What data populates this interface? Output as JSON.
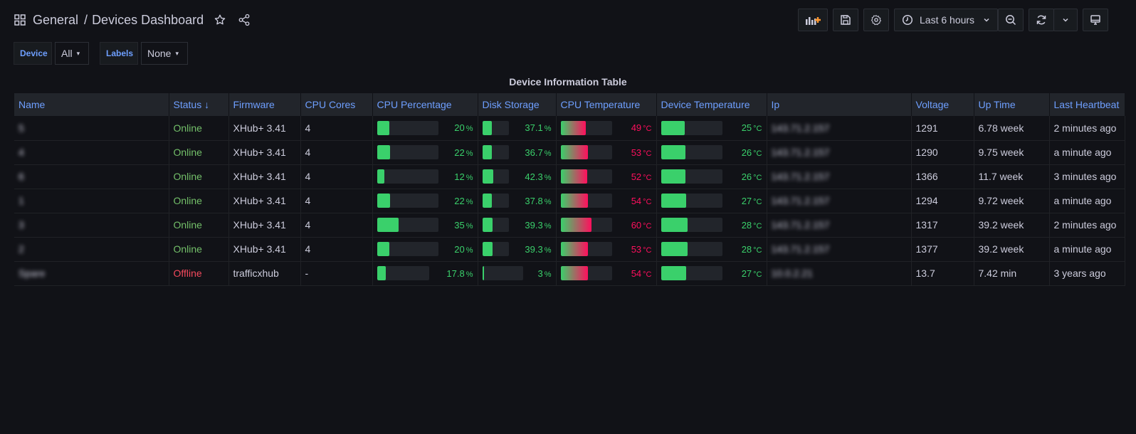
{
  "header": {
    "folder": "General",
    "separator": "/",
    "dashboard": "Devices Dashboard",
    "time_range": "Last 6 hours"
  },
  "variables": [
    {
      "label": "Device",
      "value": "All"
    },
    {
      "label": "Labels",
      "value": "None"
    }
  ],
  "panel": {
    "title": "Device Information Table",
    "columns": [
      "Name",
      "Status ↓",
      "Firmware",
      "CPU Cores",
      "CPU Percentage",
      "Disk Storage",
      "CPU Temperature",
      "Device Temperature",
      "Ip",
      "Voltage",
      "Up Time",
      "Last Heartbeat"
    ],
    "units": {
      "percent": "%",
      "temp": "°C"
    },
    "rows": [
      {
        "name": "5",
        "status": "Online",
        "firmware": "XHub+ 3.41",
        "cores": "4",
        "cpu": 20,
        "disk": 37.1,
        "cpu_temp": 49,
        "dev_temp": 25,
        "ip": "143.71.2.157",
        "voltage": "1291",
        "uptime": "6.78 week",
        "heartbeat": "2 minutes ago"
      },
      {
        "name": "4",
        "status": "Online",
        "firmware": "XHub+ 3.41",
        "cores": "4",
        "cpu": 22,
        "disk": 36.7,
        "cpu_temp": 53,
        "dev_temp": 26,
        "ip": "143.71.2.157",
        "voltage": "1290",
        "uptime": "9.75 week",
        "heartbeat": "a minute ago"
      },
      {
        "name": "6",
        "status": "Online",
        "firmware": "XHub+ 3.41",
        "cores": "4",
        "cpu": 12,
        "disk": 42.3,
        "cpu_temp": 52,
        "dev_temp": 26,
        "ip": "143.71.2.157",
        "voltage": "1366",
        "uptime": "11.7 week",
        "heartbeat": "3 minutes ago"
      },
      {
        "name": "1",
        "status": "Online",
        "firmware": "XHub+ 3.41",
        "cores": "4",
        "cpu": 22,
        "disk": 37.8,
        "cpu_temp": 54,
        "dev_temp": 27,
        "ip": "143.71.2.157",
        "voltage": "1294",
        "uptime": "9.72 week",
        "heartbeat": "a minute ago"
      },
      {
        "name": "3",
        "status": "Online",
        "firmware": "XHub+ 3.41",
        "cores": "4",
        "cpu": 35,
        "disk": 39.3,
        "cpu_temp": 60,
        "dev_temp": 28,
        "ip": "143.71.2.157",
        "voltage": "1317",
        "uptime": "39.2 week",
        "heartbeat": "2 minutes ago"
      },
      {
        "name": "2",
        "status": "Online",
        "firmware": "XHub+ 3.41",
        "cores": "4",
        "cpu": 20,
        "disk": 39.3,
        "cpu_temp": 53,
        "dev_temp": 28,
        "ip": "143.71.2.157",
        "voltage": "1377",
        "uptime": "39.2 week",
        "heartbeat": "a minute ago"
      },
      {
        "name": "Spare",
        "status": "Offline",
        "firmware": "trafficxhub",
        "cores": "-",
        "cpu": 17.8,
        "disk": 3,
        "cpu_temp": 54,
        "dev_temp": 27,
        "ip": "10.0.2.21",
        "voltage": "13.7",
        "uptime": "7.42 min",
        "heartbeat": "3 years ago"
      }
    ]
  },
  "colors": {
    "online": "#73bf69",
    "offline": "#f2495c",
    "bar_green": "#3ad06b",
    "hot": "#ff0f5d",
    "header_link": "#6e9fff"
  }
}
